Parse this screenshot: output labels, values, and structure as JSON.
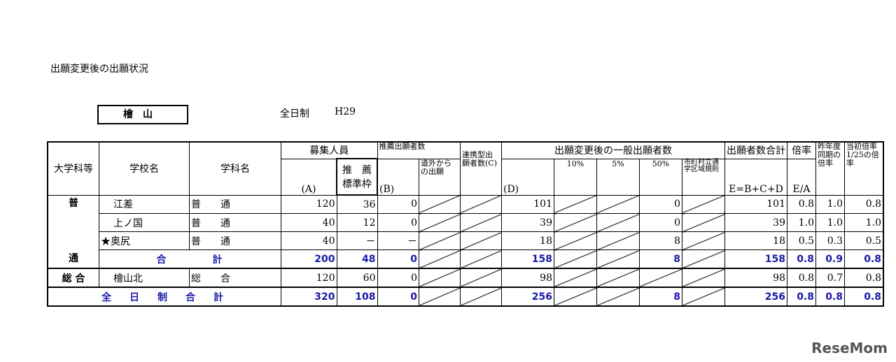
{
  "title": "出願変更後の出願状況",
  "area": "檜山",
  "kind": "全日制",
  "year": "H29",
  "headers": {
    "category": "大学科等",
    "school": "学校名",
    "dept": "学科名",
    "capacity": "募集人員",
    "capacity_a": "(A)",
    "rec_quota": "推　薦標準枠",
    "rec_applicants": "推薦出願者数",
    "b": "(B)",
    "outside": "道外からの出願",
    "renkei": "連携型出願者数(C)",
    "general": "出願変更後の一般出願者数",
    "d": "(D)",
    "p10": "10%",
    "p5": "5%",
    "p50": "50%",
    "city": "市町村立通学区域規則",
    "total": "出願者数合計",
    "total_formula": "E=B+C+D",
    "ratio": "倍率",
    "ratio_formula": "E/A",
    "last_year": "昨年度同期の倍率",
    "initial": "当初倍率1/25の倍率"
  },
  "groups": {
    "general_top": "普",
    "general_bottom": "通",
    "sogo": "総 合",
    "subtotal": "合　　　　計",
    "grand_total": "全　日　制　合　計"
  },
  "rows": [
    {
      "school": "江差",
      "dept": "普　　通",
      "a": "120",
      "rec": "36",
      "b": "0",
      "d": "101",
      "p50": "0",
      "e": "101",
      "ratio": "0.8",
      "last": "1.0",
      "init": "0.8"
    },
    {
      "school": "上ノ国",
      "dept": "普　　通",
      "a": "40",
      "rec": "12",
      "b": "0",
      "d": "39",
      "p50": "0",
      "e": "39",
      "ratio": "1.0",
      "last": "1.0",
      "init": "1.0"
    },
    {
      "school": "★奥尻",
      "dept": "普　　通",
      "a": "40",
      "rec": "－",
      "b": "－",
      "d": "18",
      "p50": "8",
      "e": "18",
      "ratio": "0.5",
      "last": "0.3",
      "init": "0.5"
    }
  ],
  "subtotal": {
    "a": "200",
    "rec": "48",
    "b": "0",
    "d": "158",
    "p50": "8",
    "e": "158",
    "ratio": "0.8",
    "last": "0.9",
    "init": "0.8"
  },
  "sogo_row": {
    "school": "檜山北",
    "dept": "総　　合",
    "a": "120",
    "rec": "60",
    "b": "0",
    "d": "98",
    "e": "98",
    "ratio": "0.8",
    "last": "0.7",
    "init": "0.8"
  },
  "grand": {
    "a": "320",
    "rec": "108",
    "b": "0",
    "d": "256",
    "p50": "8",
    "e": "256",
    "ratio": "0.8",
    "last": "0.8",
    "init": "0.8"
  },
  "logo": "ReseMom",
  "colors": {
    "total_text": "#1a1aa8"
  }
}
